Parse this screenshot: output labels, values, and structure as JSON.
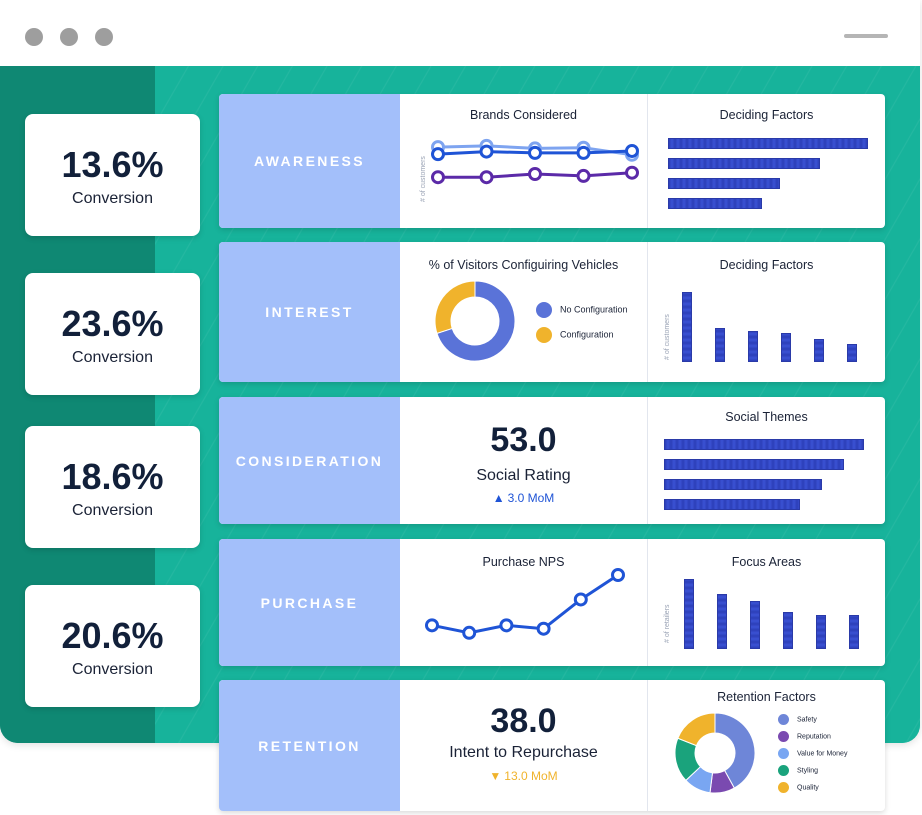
{
  "kpis": [
    {
      "value": "13.6%",
      "label": "Conversion"
    },
    {
      "value": "23.6%",
      "label": "Conversion"
    },
    {
      "value": "18.6%",
      "label": "Conversion"
    },
    {
      "value": "20.6%",
      "label": "Conversion"
    }
  ],
  "stages": [
    {
      "label": "AWARENESS"
    },
    {
      "label": "INTEREST"
    },
    {
      "label": "CONSIDERATION"
    },
    {
      "label": "PURCHASE"
    },
    {
      "label": "RETENTION"
    }
  ],
  "consideration_metric": {
    "value": "53.0",
    "label": "Social Rating",
    "delta": "3.0 MoM",
    "delta_dir": "up",
    "delta_color": "#1f54d6"
  },
  "retention_metric": {
    "value": "38.0",
    "label": "Intent to Repurchase",
    "delta": "13.0 MoM",
    "delta_dir": "down",
    "delta_color": "#f0b32c"
  },
  "colors": {
    "stage_label_bg": "#a3bffa",
    "teal": "#16b8a0",
    "bar_blue": "#2c3fb8"
  },
  "chart_data": [
    {
      "type": "line",
      "title": "Brands Considered",
      "ylabel": "# of customers",
      "x": [
        1,
        2,
        3,
        4,
        5
      ],
      "series": [
        {
          "color": "#7ea4f0",
          "values": [
            9.2,
            9.4,
            9.0,
            9.1,
            8.0
          ]
        },
        {
          "color": "#1f54d6",
          "values": [
            8.1,
            8.5,
            8.3,
            8.3,
            8.6
          ]
        },
        {
          "color": "#5b2aa8",
          "values": [
            4.5,
            4.5,
            5.0,
            4.7,
            5.2
          ]
        }
      ],
      "ylim": [
        0,
        10
      ]
    },
    {
      "type": "bar",
      "orientation": "horizontal",
      "title": "Deciding Factors",
      "values": [
        100,
        76,
        56,
        47
      ]
    },
    {
      "type": "pie",
      "title": "% of Visitors Configuiring Vehicles",
      "slices": [
        {
          "name": "No Configuration",
          "value": 70,
          "color": "#5a73d8"
        },
        {
          "name": "Configuration",
          "value": 30,
          "color": "#f0b32c"
        }
      ]
    },
    {
      "type": "bar",
      "orientation": "vertical",
      "title": "Deciding Factors",
      "ylabel": "# of customers",
      "values": [
        100,
        48,
        45,
        42,
        33,
        26
      ]
    },
    {
      "type": "bar",
      "orientation": "horizontal",
      "title": "Social Themes",
      "values": [
        100,
        90,
        79,
        68
      ]
    },
    {
      "type": "line",
      "title": "Purchase NPS",
      "x": [
        1,
        2,
        3,
        4,
        5,
        6
      ],
      "series": [
        {
          "color": "#1f54d6",
          "values": [
            2.6,
            1.5,
            2.6,
            2.1,
            6.4,
            10.0
          ]
        }
      ],
      "ylim": [
        0,
        10
      ]
    },
    {
      "type": "bar",
      "orientation": "vertical",
      "title": "Focus Areas",
      "ylabel": "# of retailers",
      "values": [
        100,
        78,
        69,
        53,
        49,
        49
      ]
    },
    {
      "type": "pie",
      "title": "Retention Factors",
      "slices": [
        {
          "name": "Safety",
          "value": 42,
          "color": "#6e86d8"
        },
        {
          "name": "Reputation",
          "value": 10,
          "color": "#7a4ab0"
        },
        {
          "name": "Value for Money",
          "value": 11,
          "color": "#79a6f2"
        },
        {
          "name": "Styling",
          "value": 18,
          "color": "#1aa37c"
        },
        {
          "name": "Quality",
          "value": 19,
          "color": "#f0b32c"
        }
      ]
    }
  ]
}
